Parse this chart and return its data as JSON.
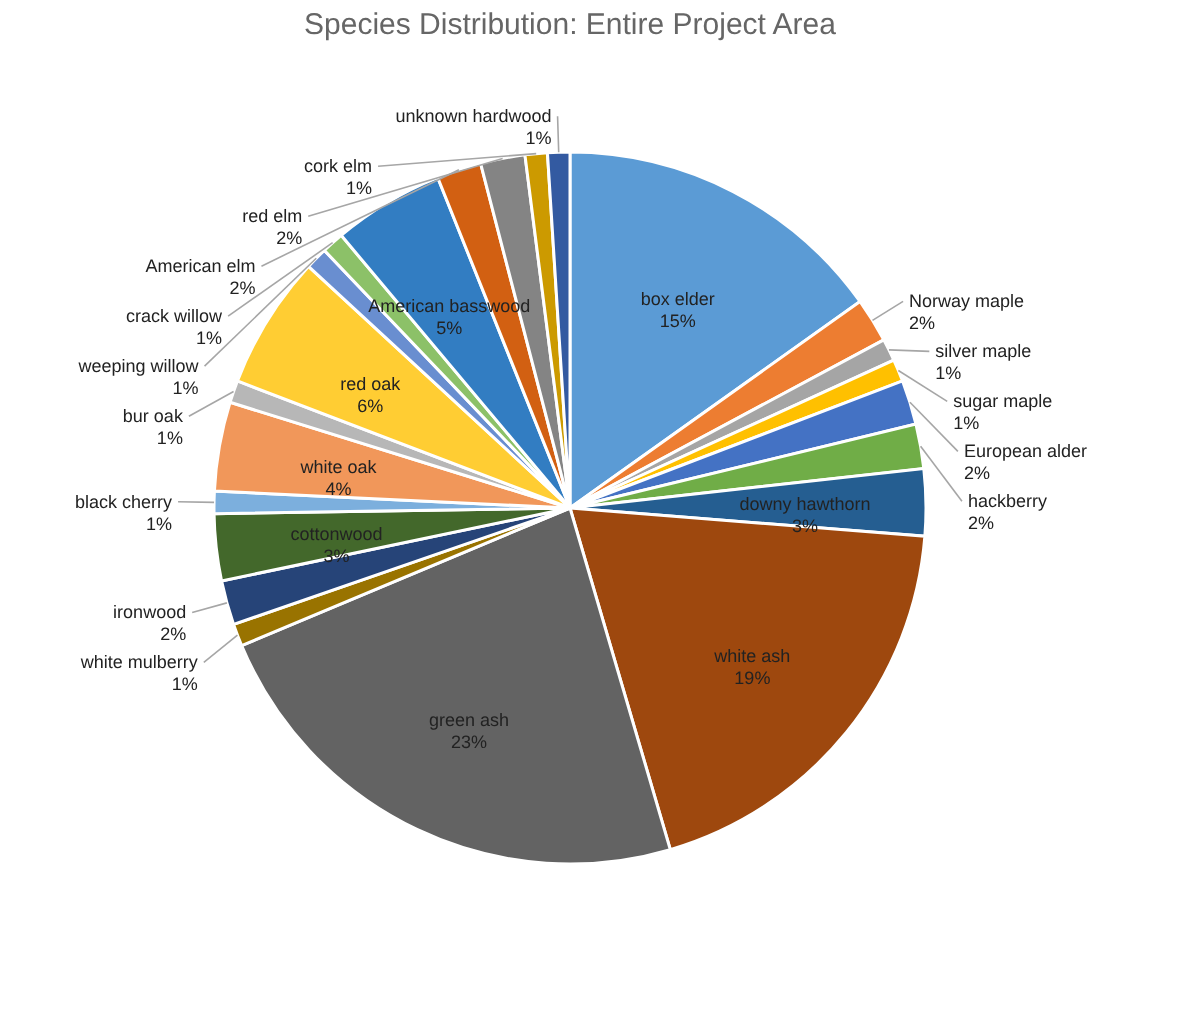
{
  "chart_data": {
    "type": "pie",
    "title": "Species Distribution: Entire Project Area",
    "categories": [
      "box elder",
      "Norway maple",
      "silver maple",
      "sugar maple",
      "European alder",
      "hackberry",
      "downy hawthorn",
      "white ash",
      "green ash",
      "white mulberry",
      "ironwood",
      "cottonwood",
      "black cherry",
      "white oak",
      "bur oak",
      "red oak",
      "weeping willow",
      "crack willow",
      "American basswood",
      "American elm",
      "red elm",
      "cork elm",
      "unknown hardwood"
    ],
    "values": [
      15,
      2,
      1,
      1,
      2,
      2,
      3,
      19,
      23,
      1,
      2,
      3,
      1,
      4,
      1,
      6,
      1,
      1,
      5,
      2,
      2,
      1,
      1
    ],
    "value_labels": [
      "15%",
      "2%",
      "1%",
      "1%",
      "2%",
      "2%",
      "3%",
      "19%",
      "23%",
      "1%",
      "2%",
      "3%",
      "1%",
      "4%",
      "1%",
      "6%",
      "1%",
      "1%",
      "5%",
      "2%",
      "2%",
      "1%",
      "1%"
    ],
    "colors": [
      "#5b9bd5",
      "#ed7d31",
      "#a5a5a5",
      "#ffc000",
      "#4472c4",
      "#70ad47",
      "#255e91",
      "#9e480e",
      "#636363",
      "#997300",
      "#264478",
      "#43682b",
      "#7cafdd",
      "#f1975a",
      "#b7b7b7",
      "#ffcd33",
      "#698ed0",
      "#8cc168",
      "#327dc2",
      "#d26012",
      "#848484",
      "#cc9a00",
      "#335aa1"
    ],
    "legend": false
  }
}
